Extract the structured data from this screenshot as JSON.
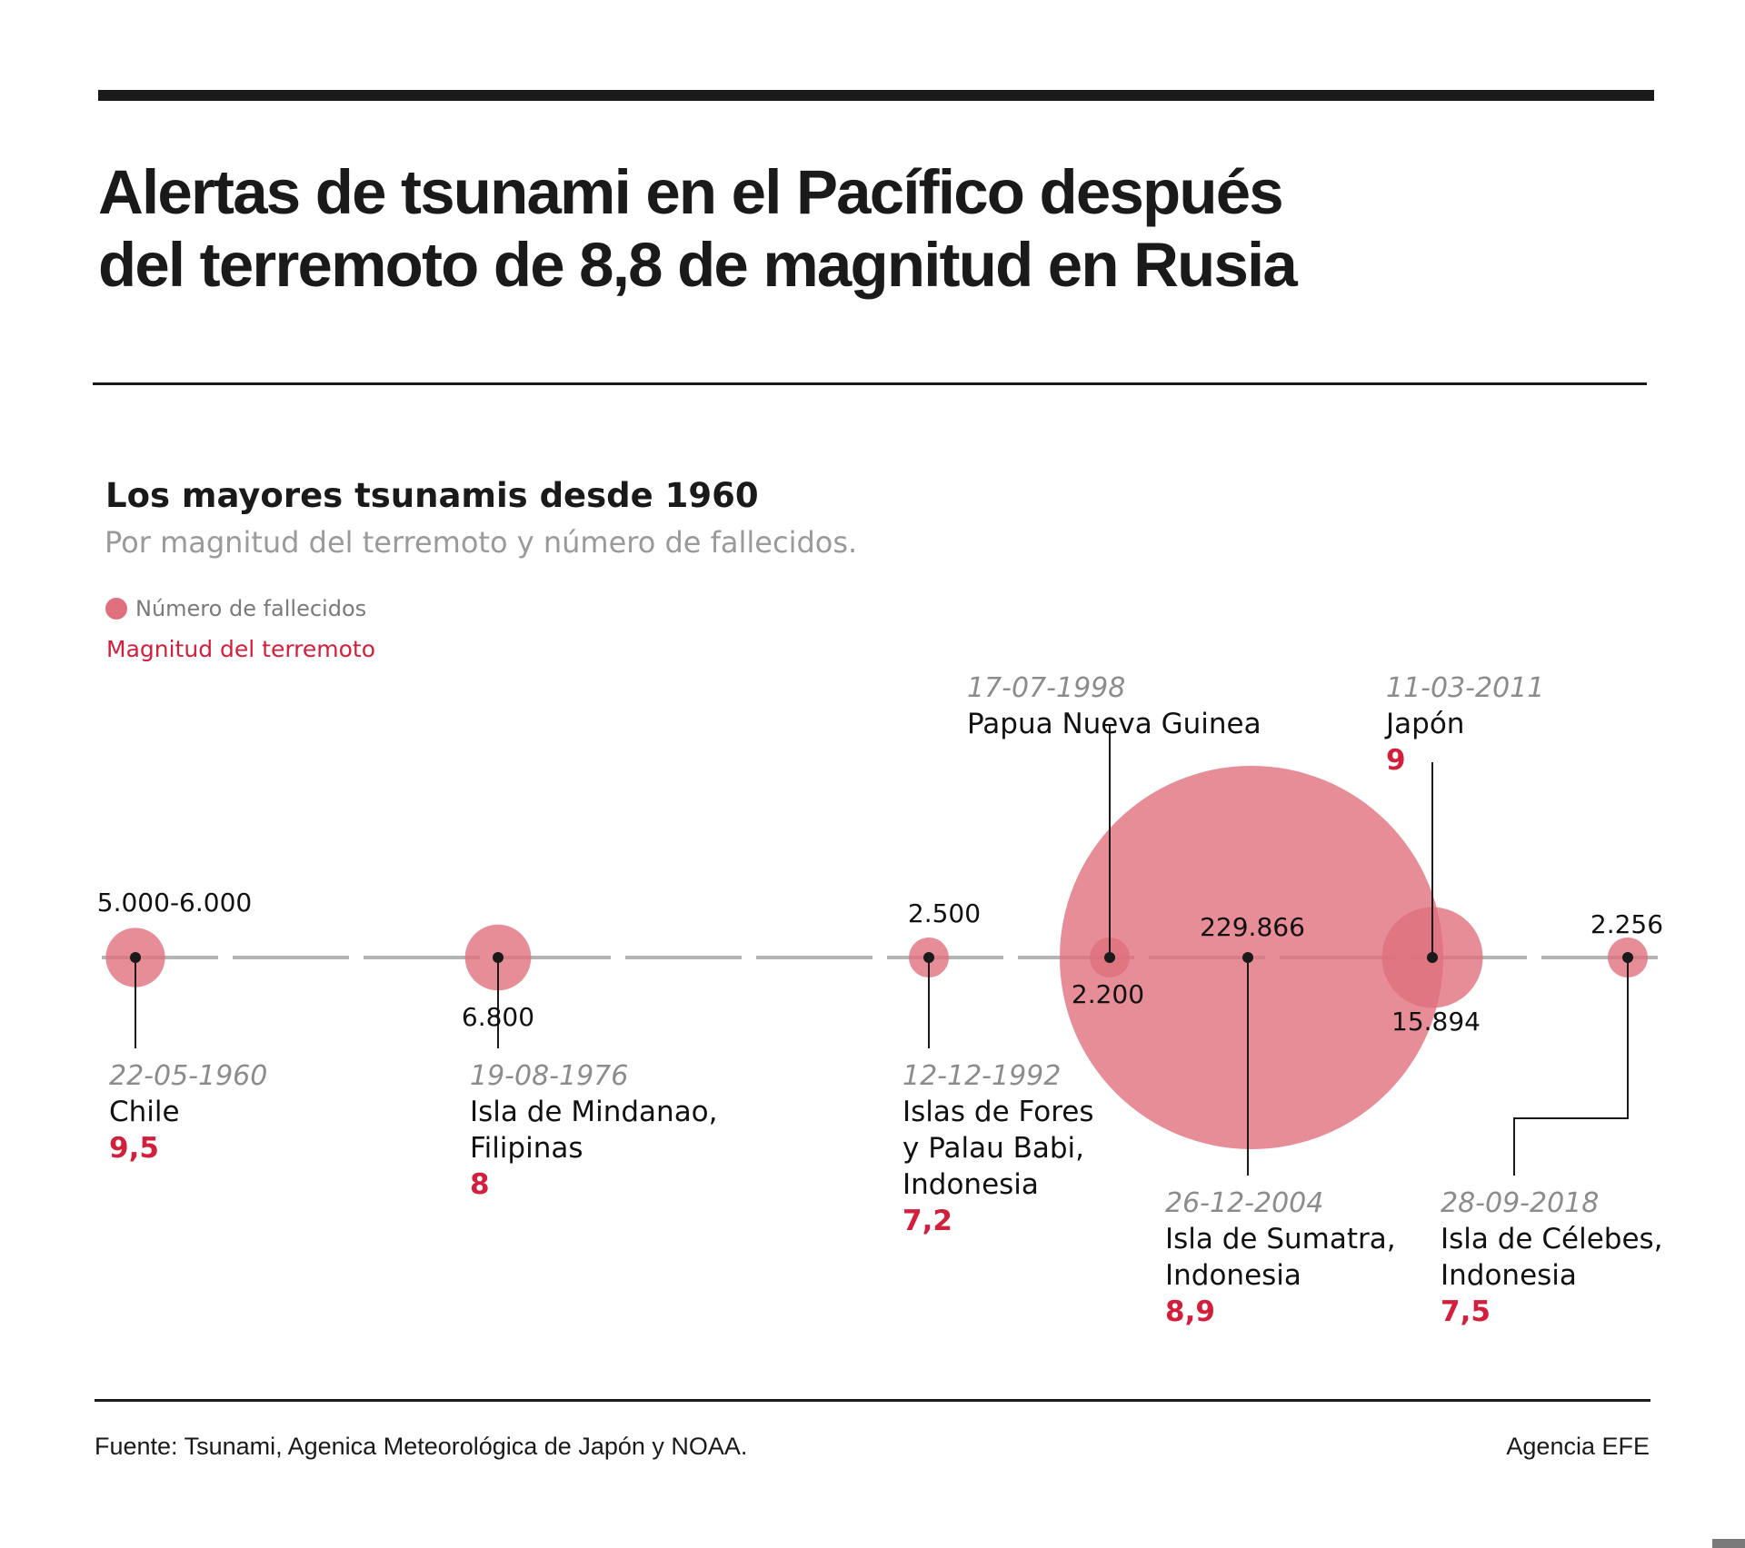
{
  "header": {
    "title_line1": "Alertas de tsunami en el Pacífico después",
    "title_line2": "del terremoto de 8,8 de magnitud en Rusia"
  },
  "chart_data": {
    "type": "scatter",
    "title": "Los mayores tsunamis desde 1960",
    "subtitle": "Por magnitud del terremoto y número de fallecidos.",
    "legend": {
      "deaths_label": "Número de fallecidos",
      "magnitude_label": "Magnitud del terremoto",
      "placement": "top-left"
    },
    "x_axis": {
      "kind": "date",
      "range": [
        "1960-05-22",
        "2018-09-28"
      ]
    },
    "size_encoding": "deaths",
    "colors": {
      "bubble": "#e0707e",
      "magnitude": "#d21f3c",
      "date": "#8c8c8c",
      "axis": "#b4b4b4",
      "leader": "#1a1a1a"
    },
    "events": [
      {
        "date": "22-05-1960",
        "iso": "1960-05-22",
        "place_lines": [
          "Chile"
        ],
        "magnitude": 9.5,
        "magnitude_label": "9,5",
        "deaths": 5500,
        "deaths_label": "5.000-6.000"
      },
      {
        "date": "19-08-1976",
        "iso": "1976-08-19",
        "place_lines": [
          "Isla de Mindanao,",
          "Filipinas"
        ],
        "magnitude": 8.0,
        "magnitude_label": "8",
        "deaths": 6800,
        "deaths_label": "6.800"
      },
      {
        "date": "12-12-1992",
        "iso": "1992-12-12",
        "place_lines": [
          "Islas de Fores",
          "y Palau Babi,",
          "Indonesia"
        ],
        "magnitude": 7.2,
        "magnitude_label": "7,2",
        "deaths": 2500,
        "deaths_label": "2.500"
      },
      {
        "date": "17-07-1998",
        "iso": "1998-07-17",
        "place_lines": [
          "Papua Nueva Guinea"
        ],
        "magnitude": null,
        "magnitude_label": "",
        "deaths": 2200,
        "deaths_label": "2.200"
      },
      {
        "date": "26-12-2004",
        "iso": "2004-12-26",
        "place_lines": [
          "Isla de Sumatra,",
          "Indonesia"
        ],
        "magnitude": 8.9,
        "magnitude_label": "8,9",
        "deaths": 229866,
        "deaths_label": "229.866"
      },
      {
        "date": "11-03-2011",
        "iso": "2011-03-11",
        "place_lines": [
          "Japón"
        ],
        "magnitude": 9.0,
        "magnitude_label": "9",
        "deaths": 15894,
        "deaths_label": "15.894"
      },
      {
        "date": "28-09-2018",
        "iso": "2018-09-28",
        "place_lines": [
          "Isla de Célebes,",
          "Indonesia"
        ],
        "magnitude": 7.5,
        "magnitude_label": "7,5",
        "deaths": 2256,
        "deaths_label": "2.256"
      }
    ]
  },
  "footer": {
    "source": "Fuente: Tsunami, Agenica Meteorológica de Japón y NOAA.",
    "credit": "Agencia EFE"
  }
}
